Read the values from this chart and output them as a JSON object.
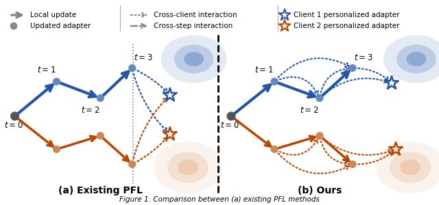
{
  "figsize": [
    6.4,
    3.0
  ],
  "dpi": 100,
  "bg_color": "#ffffff",
  "blue_color": "#2255aa",
  "orange_color": "#bb4400",
  "gray_color": "#888888",
  "blue_node_color": "#6688bb",
  "orange_node_color": "#cc8855",
  "dark_node_color": "#555555",
  "legend": {
    "local_update": "Local update",
    "updated_adapter": "Updated adapter",
    "cross_client": "Cross-client interaction",
    "cross_step": "Cross-step interaction",
    "client1_adapter": "Client 1 personalized adapter",
    "client2_adapter": "Client 2 personalized adapter"
  }
}
